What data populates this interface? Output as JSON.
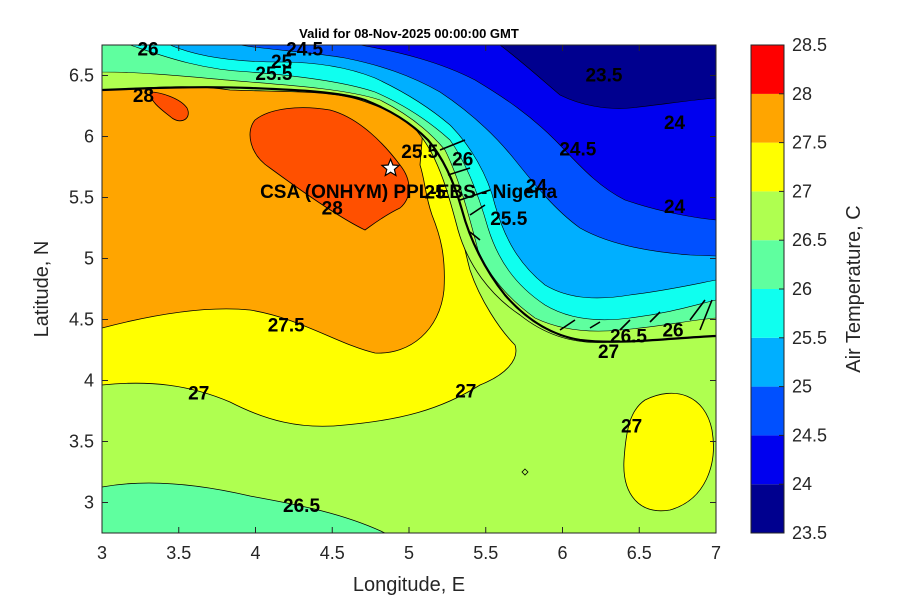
{
  "chart_data": {
    "type": "heatmap",
    "title": "Valid for 08-Nov-2025 00:00:00 GMT",
    "xlabel": "Longitude, E",
    "ylabel": "Latitude, N",
    "colorbar_label": "Air Temperature, C",
    "xlim": [
      3,
      7
    ],
    "ylim": [
      2.75,
      6.75
    ],
    "xticks": [
      "3",
      "3.5",
      "4",
      "4.5",
      "5",
      "5.5",
      "6",
      "6.5",
      "7"
    ],
    "yticks": [
      "3",
      "3.5",
      "4",
      "4.5",
      "5",
      "5.5",
      "6",
      "6.5"
    ],
    "color_levels": [
      23.5,
      24,
      24.5,
      25,
      25.5,
      26,
      26.5,
      27,
      27.5,
      28,
      28.5
    ],
    "colorbar_ticks": [
      "23.5",
      "24",
      "24.5",
      "25",
      "25.5",
      "26",
      "26.5",
      "27",
      "27.5",
      "28",
      "28.5"
    ],
    "colors": [
      "#00008f",
      "#0000ef",
      "#0050ff",
      "#00afff",
      "#0fffef",
      "#5fff9f",
      "#afff50",
      "#ffff00",
      "#ffa500",
      "#ff5000",
      "#ff0000"
    ],
    "site": {
      "label": "CSA (ONHYM) PPL-EBS - Nigeria",
      "lon": 4.88,
      "lat": 5.74
    },
    "contour_labels": [
      {
        "text": "28",
        "lon": 3.27,
        "lat": 6.34
      },
      {
        "text": "28",
        "lon": 4.5,
        "lat": 5.42
      },
      {
        "text": "27.5",
        "lon": 4.2,
        "lat": 4.46
      },
      {
        "text": "27",
        "lon": 3.63,
        "lat": 3.9
      },
      {
        "text": "27",
        "lon": 5.37,
        "lat": 3.92
      },
      {
        "text": "27",
        "lon": 6.45,
        "lat": 3.63
      },
      {
        "text": "27",
        "lon": 6.3,
        "lat": 4.24
      },
      {
        "text": "26.5",
        "lon": 4.3,
        "lat": 2.98
      },
      {
        "text": "26.5",
        "lon": 6.43,
        "lat": 4.37
      },
      {
        "text": "26",
        "lon": 6.72,
        "lat": 4.42
      },
      {
        "text": "26",
        "lon": 3.3,
        "lat": 6.72
      },
      {
        "text": "26",
        "lon": 5.35,
        "lat": 5.82
      },
      {
        "text": "25.5",
        "lon": 4.12,
        "lat": 6.52
      },
      {
        "text": "25.5",
        "lon": 5.65,
        "lat": 5.33
      },
      {
        "text": "25.5",
        "lon": 5.07,
        "lat": 5.88
      },
      {
        "text": "25",
        "lon": 4.17,
        "lat": 6.62
      },
      {
        "text": "25",
        "lon": 5.17,
        "lat": 5.55
      },
      {
        "text": "24.5",
        "lon": 4.32,
        "lat": 6.72
      },
      {
        "text": "24.5",
        "lon": 6.1,
        "lat": 5.9
      },
      {
        "text": "24",
        "lon": 6.73,
        "lat": 6.12
      },
      {
        "text": "24",
        "lon": 6.73,
        "lat": 5.43
      },
      {
        "text": "23.5",
        "lon": 6.27,
        "lat": 6.51
      },
      {
        "text": "24",
        "lon": 5.83,
        "lat": 5.6
      }
    ]
  }
}
